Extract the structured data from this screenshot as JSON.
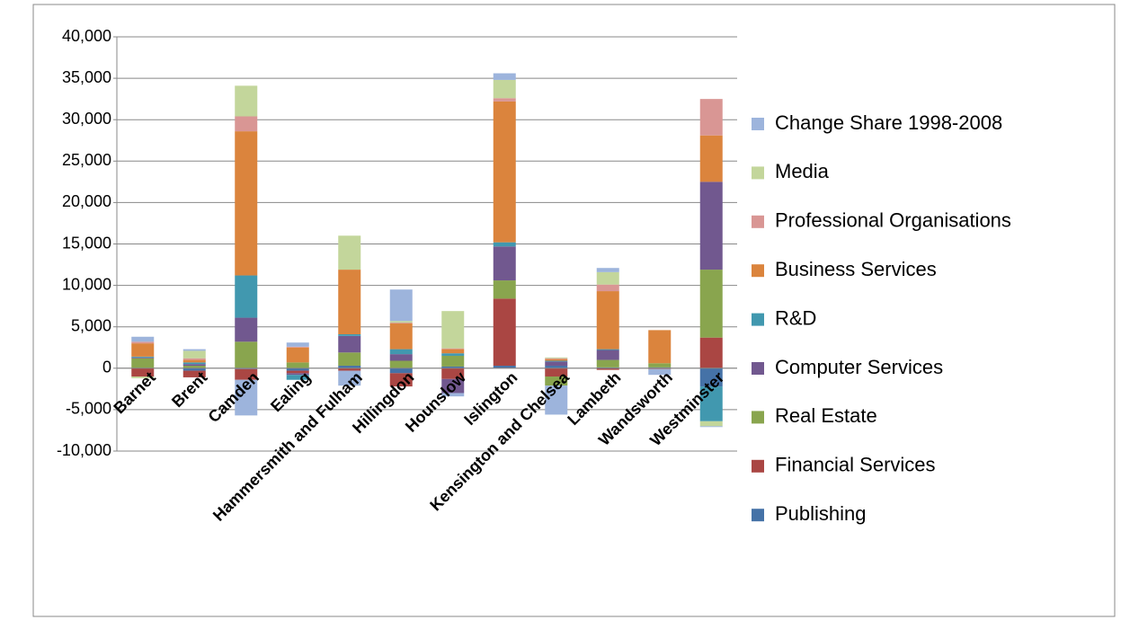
{
  "chart_data": {
    "type": "stacked-bar",
    "categories": [
      "Barnet",
      "Brent",
      "Camden",
      "Ealing",
      "Hammersmith and Fulham",
      "Hillingdon",
      "Hounslow",
      "Islington",
      "Kensington and Chelsea",
      "Lambeth",
      "Wandsworth",
      "Westminster"
    ],
    "series": [
      {
        "name": "Publishing",
        "color": "#4572a7",
        "values": [
          0,
          -300,
          -100,
          -300,
          300,
          -600,
          200,
          300,
          300,
          100,
          100,
          -2200
        ]
      },
      {
        "name": "Financial Services",
        "color": "#aa4643",
        "values": [
          -1000,
          -800,
          -1300,
          -300,
          -300,
          -1600,
          -1300,
          8100,
          -1000,
          -200,
          -100,
          3700
        ]
      },
      {
        "name": "Real Estate",
        "color": "#89a54e",
        "values": [
          1200,
          300,
          3200,
          700,
          1600,
          900,
          1300,
          2200,
          -1100,
          900,
          500,
          8200
        ]
      },
      {
        "name": "Computer Services",
        "color": "#71588f",
        "values": [
          100,
          200,
          2900,
          -200,
          2000,
          800,
          -1700,
          4100,
          500,
          1200,
          0,
          10600
        ]
      },
      {
        "name": "R&D",
        "color": "#4198af",
        "values": [
          100,
          200,
          5100,
          -600,
          200,
          600,
          300,
          500,
          100,
          100,
          0,
          -4200
        ]
      },
      {
        "name": "Business Services",
        "color": "#db843d",
        "values": [
          1600,
          300,
          17400,
          1800,
          7800,
          3100,
          500,
          17000,
          200,
          7000,
          4000,
          5600
        ]
      },
      {
        "name": "Professional Organisations",
        "color": "#d99694",
        "values": [
          200,
          200,
          1800,
          100,
          0,
          100,
          100,
          400,
          100,
          800,
          0,
          4400
        ]
      },
      {
        "name": "Media",
        "color": "#c3d69b",
        "values": [
          -200,
          900,
          3700,
          0,
          4100,
          200,
          4500,
          2200,
          100,
          1500,
          0,
          -600
        ]
      },
      {
        "name": "Change Share 1998-2008",
        "color": "#9db4dc",
        "values": [
          600,
          200,
          -4300,
          500,
          -1800,
          3800,
          -400,
          800,
          -3500,
          500,
          -700,
          -100
        ]
      }
    ],
    "ylim": [
      -10000,
      40000
    ],
    "yticks": [
      {
        "value": -10000,
        "label": "-10,000"
      },
      {
        "value": -5000,
        "label": "-5,000"
      },
      0,
      {
        "value": 5000,
        "label": "5,000"
      },
      {
        "value": 10000,
        "label": "10,000"
      },
      {
        "value": 15000,
        "label": "15,000"
      },
      {
        "value": 20000,
        "label": "20,000"
      },
      {
        "value": 25000,
        "label": "25,000"
      },
      {
        "value": 30000,
        "label": "30,000"
      },
      {
        "value": 35000,
        "label": "35,000"
      },
      {
        "value": 40000,
        "label": "40,000"
      }
    ],
    "grid": true,
    "legend": "right"
  }
}
